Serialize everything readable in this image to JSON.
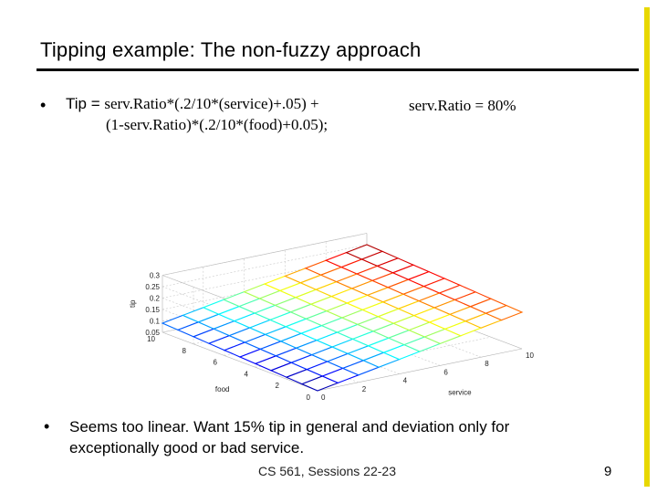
{
  "slide": {
    "title": "Tipping example:  The non-fuzzy approach",
    "bullet1": {
      "prefix": "Tip = ",
      "formula_line1": "serv.Ratio*(.2/10*(service)+.05) +",
      "formula_line2": "(1-serv.Ratio)*(.2/10*(food)+0.05);",
      "ratio": "serv.Ratio = 80%"
    },
    "bullet2": "Seems too linear.  Want 15% tip in general and deviation only for exceptionally good or bad service.",
    "footer": "CS 561,  Sessions 22-23",
    "page_number": "9",
    "bullet_glyph": "•",
    "accent_color": "#e8d800"
  },
  "chart_data": {
    "type": "surface",
    "xlabel": "service",
    "ylabel": "food",
    "zlabel": "tip",
    "x_ticks": [
      "0",
      "2",
      "4",
      "6",
      "8",
      "10"
    ],
    "y_ticks": [
      "0",
      "2",
      "4",
      "6",
      "8",
      "10"
    ],
    "z_ticks": [
      "0.05",
      "0.1",
      "0.15",
      "0.2",
      "0.25",
      "0.3"
    ],
    "xlim": [
      0,
      10
    ],
    "ylim": [
      0,
      10
    ],
    "zlim": [
      0.05,
      0.3
    ],
    "grid": true,
    "serv_ratio": 0.8,
    "formula": "tip = 0.8*(0.02*service+0.05) + 0.2*(0.02*food+0.05)",
    "colormap": "jet"
  }
}
